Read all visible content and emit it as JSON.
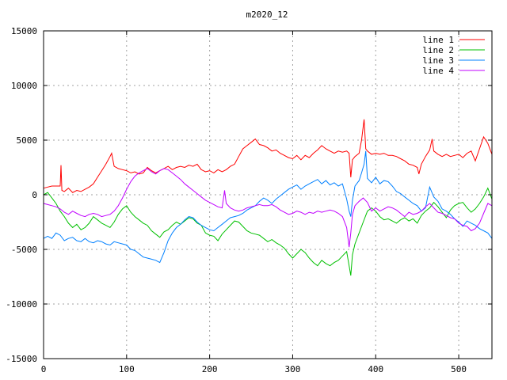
{
  "chart_data": {
    "type": "line",
    "title": "m2020_12",
    "xlim": [
      0,
      540
    ],
    "ylim": [
      -15000,
      15000
    ],
    "x_ticks": [
      0,
      100,
      200,
      300,
      400,
      500
    ],
    "y_ticks": [
      -15000,
      -10000,
      -5000,
      0,
      5000,
      10000,
      15000
    ],
    "grid": true,
    "legend_position": "top-right",
    "series": [
      {
        "name": "line 1",
        "color": "#ff0000",
        "x": [
          0,
          5,
          10,
          15,
          20,
          21,
          22,
          25,
          30,
          35,
          40,
          45,
          50,
          55,
          60,
          65,
          70,
          75,
          80,
          82,
          85,
          90,
          95,
          100,
          105,
          110,
          115,
          120,
          125,
          130,
          135,
          140,
          145,
          150,
          155,
          160,
          165,
          170,
          175,
          180,
          185,
          190,
          195,
          200,
          205,
          210,
          215,
          220,
          225,
          230,
          235,
          240,
          245,
          250,
          255,
          260,
          265,
          270,
          275,
          280,
          285,
          290,
          295,
          300,
          305,
          310,
          315,
          320,
          325,
          330,
          335,
          340,
          345,
          350,
          355,
          360,
          365,
          368,
          370,
          372,
          375,
          380,
          383,
          386,
          388,
          390,
          395,
          400,
          405,
          410,
          415,
          420,
          425,
          430,
          435,
          440,
          445,
          450,
          452,
          455,
          460,
          465,
          468,
          470,
          475,
          480,
          485,
          490,
          495,
          500,
          505,
          510,
          515,
          520,
          525,
          530,
          535,
          540
        ],
        "values": [
          600,
          700,
          800,
          800,
          800,
          2700,
          400,
          300,
          600,
          200,
          400,
          300,
          500,
          700,
          1000,
          1600,
          2200,
          2800,
          3500,
          3800,
          2600,
          2400,
          2300,
          2200,
          2000,
          2100,
          1900,
          2000,
          2500,
          2200,
          2000,
          2200,
          2400,
          2600,
          2300,
          2500,
          2600,
          2500,
          2700,
          2600,
          2800,
          2300,
          2100,
          2200,
          2000,
          2300,
          2100,
          2300,
          2600,
          2800,
          3500,
          4200,
          4500,
          4800,
          5100,
          4600,
          4500,
          4300,
          4000,
          4100,
          3800,
          3600,
          3400,
          3300,
          3600,
          3200,
          3600,
          3400,
          3800,
          4100,
          4500,
          4200,
          4000,
          3800,
          4000,
          3900,
          4000,
          3800,
          1600,
          3200,
          3500,
          3800,
          5000,
          6900,
          4200,
          4000,
          3700,
          3800,
          3700,
          3800,
          3600,
          3600,
          3500,
          3300,
          3100,
          2800,
          2700,
          2500,
          1900,
          2800,
          3500,
          4100,
          5100,
          4000,
          3700,
          3500,
          3700,
          3500,
          3600,
          3700,
          3400,
          3800,
          4000,
          3100,
          4200,
          5300,
          4700,
          3700
        ]
      },
      {
        "name": "line 2",
        "color": "#00c000",
        "x": [
          0,
          5,
          10,
          15,
          20,
          25,
          30,
          35,
          40,
          45,
          50,
          55,
          60,
          65,
          70,
          75,
          80,
          85,
          90,
          95,
          100,
          105,
          110,
          115,
          120,
          125,
          130,
          135,
          140,
          145,
          150,
          155,
          160,
          165,
          170,
          175,
          180,
          185,
          190,
          195,
          200,
          205,
          210,
          215,
          220,
          225,
          230,
          235,
          240,
          245,
          250,
          255,
          260,
          265,
          270,
          275,
          280,
          285,
          290,
          295,
          300,
          305,
          310,
          315,
          320,
          325,
          330,
          335,
          340,
          345,
          350,
          355,
          360,
          365,
          368,
          370,
          372,
          375,
          380,
          385,
          390,
          395,
          400,
          405,
          410,
          415,
          420,
          425,
          430,
          435,
          440,
          445,
          450,
          455,
          460,
          465,
          470,
          475,
          480,
          485,
          490,
          495,
          500,
          505,
          510,
          515,
          520,
          525,
          530,
          535,
          540
        ],
        "values": [
          0,
          200,
          -300,
          -800,
          -1500,
          -2000,
          -2600,
          -3000,
          -2700,
          -3200,
          -3000,
          -2600,
          -2000,
          -2300,
          -2600,
          -2800,
          -3000,
          -2500,
          -1800,
          -1300,
          -1000,
          -1600,
          -2000,
          -2300,
          -2600,
          -2800,
          -3300,
          -3600,
          -3900,
          -3400,
          -3200,
          -2800,
          -2500,
          -2700,
          -2400,
          -2100,
          -2200,
          -2600,
          -2800,
          -3500,
          -3700,
          -3800,
          -4200,
          -3600,
          -3200,
          -2800,
          -2400,
          -2500,
          -2900,
          -3300,
          -3500,
          -3600,
          -3700,
          -4000,
          -4300,
          -4100,
          -4400,
          -4600,
          -4900,
          -5400,
          -5800,
          -5400,
          -5000,
          -5300,
          -5800,
          -6200,
          -6500,
          -6000,
          -6300,
          -6500,
          -6200,
          -6000,
          -5600,
          -5200,
          -6500,
          -7400,
          -5500,
          -4500,
          -3500,
          -2500,
          -1500,
          -1200,
          -1500,
          -2000,
          -2300,
          -2200,
          -2400,
          -2600,
          -2300,
          -2100,
          -2400,
          -2200,
          -2600,
          -1900,
          -1500,
          -1200,
          -700,
          -1100,
          -1600,
          -2100,
          -1400,
          -1000,
          -800,
          -700,
          -1200,
          -1600,
          -1300,
          -800,
          -200,
          600,
          -400
        ]
      },
      {
        "name": "line 3",
        "color": "#0080ff",
        "x": [
          0,
          5,
          10,
          15,
          20,
          25,
          30,
          35,
          40,
          45,
          50,
          55,
          60,
          65,
          70,
          75,
          80,
          85,
          90,
          95,
          100,
          105,
          110,
          115,
          120,
          125,
          130,
          135,
          140,
          145,
          150,
          155,
          160,
          165,
          170,
          175,
          180,
          185,
          190,
          195,
          200,
          205,
          210,
          215,
          220,
          225,
          230,
          235,
          240,
          245,
          250,
          255,
          260,
          265,
          270,
          275,
          280,
          285,
          290,
          295,
          300,
          305,
          310,
          315,
          320,
          325,
          330,
          335,
          340,
          345,
          350,
          355,
          360,
          365,
          368,
          370,
          372,
          375,
          380,
          383,
          386,
          388,
          390,
          395,
          400,
          405,
          410,
          415,
          420,
          425,
          430,
          435,
          440,
          445,
          450,
          455,
          460,
          465,
          470,
          475,
          480,
          485,
          490,
          495,
          500,
          505,
          510,
          515,
          520,
          525,
          530,
          535,
          540
        ],
        "values": [
          -4000,
          -3800,
          -4000,
          -3500,
          -3700,
          -4200,
          -4000,
          -3900,
          -4200,
          -4300,
          -4000,
          -4300,
          -4400,
          -4200,
          -4300,
          -4500,
          -4600,
          -4300,
          -4400,
          -4500,
          -4600,
          -5000,
          -5100,
          -5400,
          -5700,
          -5800,
          -5900,
          -6000,
          -6200,
          -5300,
          -4200,
          -3500,
          -3000,
          -2700,
          -2300,
          -2000,
          -2100,
          -2500,
          -2800,
          -3000,
          -3200,
          -3300,
          -3000,
          -2700,
          -2400,
          -2100,
          -2000,
          -1900,
          -1700,
          -1400,
          -1200,
          -1000,
          -600,
          -300,
          -500,
          -800,
          -400,
          -100,
          200,
          500,
          700,
          900,
          500,
          800,
          1000,
          1200,
          1400,
          1000,
          1300,
          900,
          1100,
          800,
          1000,
          -400,
          -1500,
          -2000,
          -500,
          800,
          1300,
          2000,
          2800,
          4000,
          1500,
          1100,
          1600,
          1000,
          1300,
          1200,
          800,
          300,
          100,
          -200,
          -500,
          -800,
          -1000,
          -1500,
          -1200,
          700,
          -200,
          -600,
          -1300,
          -1500,
          -1800,
          -2200,
          -2500,
          -2900,
          -2400,
          -2600,
          -2800,
          -3100,
          -3300,
          -3500,
          -4000
        ]
      },
      {
        "name": "line 4",
        "color": "#c000ff",
        "x": [
          0,
          5,
          10,
          15,
          20,
          25,
          30,
          35,
          40,
          45,
          50,
          55,
          60,
          65,
          70,
          75,
          80,
          85,
          90,
          95,
          100,
          105,
          110,
          115,
          120,
          125,
          130,
          135,
          140,
          145,
          150,
          155,
          160,
          165,
          170,
          175,
          180,
          185,
          190,
          195,
          200,
          205,
          210,
          215,
          218,
          220,
          225,
          230,
          235,
          240,
          245,
          250,
          255,
          260,
          265,
          270,
          275,
          280,
          285,
          290,
          295,
          300,
          305,
          310,
          315,
          320,
          325,
          330,
          335,
          340,
          345,
          350,
          355,
          360,
          365,
          368,
          370,
          372,
          375,
          380,
          385,
          390,
          395,
          400,
          405,
          410,
          415,
          420,
          425,
          430,
          435,
          440,
          445,
          450,
          455,
          460,
          465,
          470,
          475,
          480,
          485,
          490,
          495,
          500,
          505,
          510,
          515,
          520,
          525,
          530,
          535,
          540
        ],
        "values": [
          -800,
          -900,
          -1000,
          -1100,
          -1300,
          -1600,
          -1800,
          -1500,
          -1700,
          -1900,
          -2000,
          -1800,
          -1700,
          -1800,
          -2000,
          -1900,
          -1800,
          -1500,
          -1000,
          -300,
          500,
          1200,
          1700,
          2000,
          2200,
          2400,
          2100,
          1900,
          2200,
          2400,
          2300,
          2000,
          1700,
          1400,
          1000,
          700,
          400,
          100,
          -200,
          -500,
          -700,
          -900,
          -1100,
          -1200,
          400,
          -800,
          -1200,
          -1400,
          -1500,
          -1400,
          -1200,
          -1100,
          -1000,
          -900,
          -1000,
          -1000,
          -900,
          -1100,
          -1400,
          -1600,
          -1800,
          -1700,
          -1500,
          -1600,
          -1800,
          -1600,
          -1700,
          -1500,
          -1600,
          -1500,
          -1400,
          -1500,
          -1700,
          -2000,
          -3000,
          -4800,
          -3500,
          -1800,
          -1000,
          -600,
          -300,
          -700,
          -1500,
          -1200,
          -1500,
          -1300,
          -1100,
          -1200,
          -1400,
          -1700,
          -2000,
          -1600,
          -1800,
          -1700,
          -1500,
          -1100,
          -800,
          -1200,
          -1600,
          -1700,
          -1900,
          -2100,
          -2200,
          -2600,
          -2800,
          -2900,
          -3300,
          -3100,
          -2600,
          -1700,
          -800,
          -1000
        ]
      }
    ]
  }
}
